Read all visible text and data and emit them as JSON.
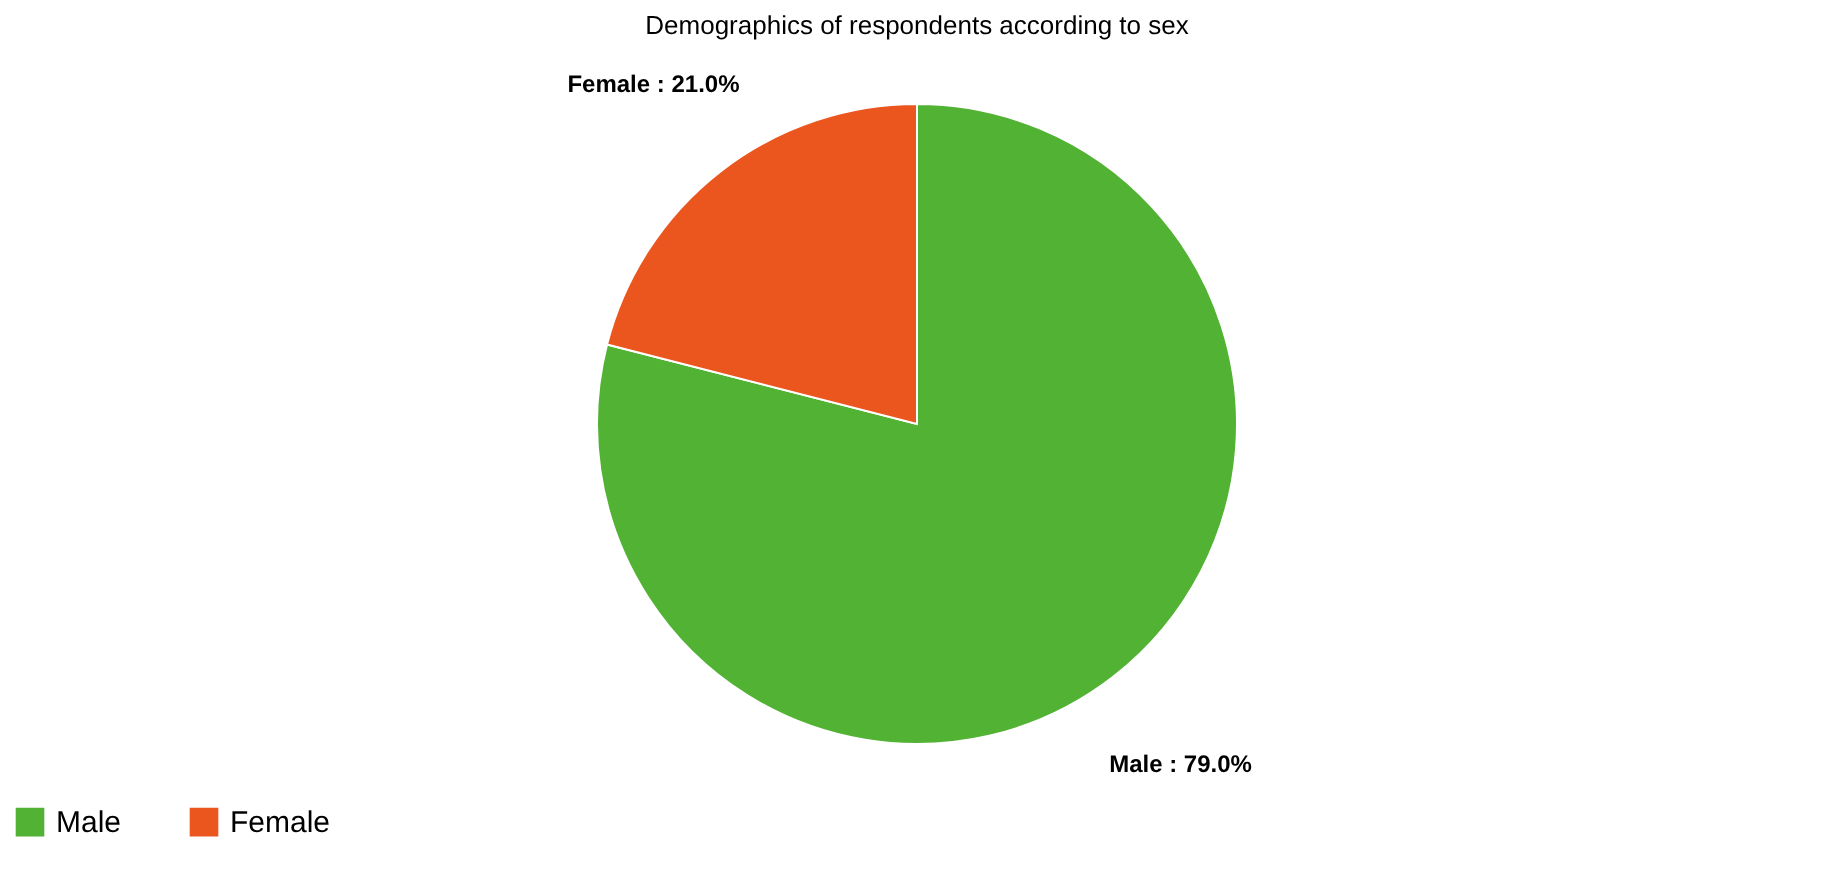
{
  "chart_data": {
    "type": "pie",
    "title": "Demographics of respondents according to sex",
    "categories": [
      "Male",
      "Female"
    ],
    "values": [
      79.0,
      21.0
    ],
    "colors": [
      "#52b234",
      "#eb561e"
    ],
    "value_labels": [
      "Male : 79.0%",
      "Female : 21.0%"
    ],
    "legend": "bottom"
  }
}
